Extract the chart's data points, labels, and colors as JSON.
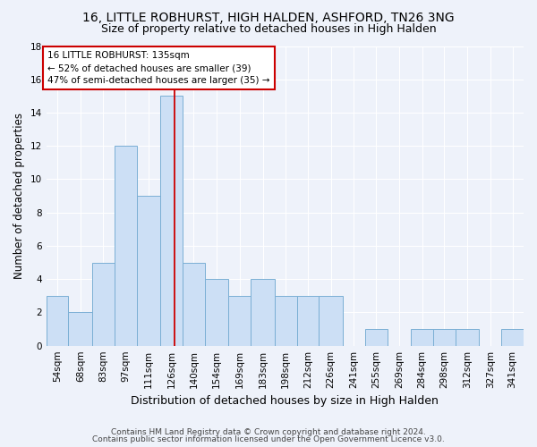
{
  "title1": "16, LITTLE ROBHURST, HIGH HALDEN, ASHFORD, TN26 3NG",
  "title2": "Size of property relative to detached houses in High Halden",
  "xlabel": "Distribution of detached houses by size in High Halden",
  "ylabel": "Number of detached properties",
  "bar_color": "#ccdff5",
  "bar_edge_color": "#7aafd4",
  "categories": [
    "54sqm",
    "68sqm",
    "83sqm",
    "97sqm",
    "111sqm",
    "126sqm",
    "140sqm",
    "154sqm",
    "169sqm",
    "183sqm",
    "198sqm",
    "212sqm",
    "226sqm",
    "241sqm",
    "255sqm",
    "269sqm",
    "284sqm",
    "298sqm",
    "312sqm",
    "327sqm",
    "341sqm"
  ],
  "values": [
    3,
    2,
    5,
    12,
    9,
    15,
    5,
    4,
    3,
    4,
    3,
    3,
    3,
    0,
    1,
    0,
    1,
    1,
    1,
    0,
    1
  ],
  "bin_edges": [
    54,
    68,
    83,
    97,
    111,
    126,
    140,
    154,
    169,
    183,
    198,
    212,
    226,
    241,
    255,
    269,
    284,
    298,
    312,
    327,
    341,
    355
  ],
  "vline_x": 135,
  "annotation_lines": [
    "16 LITTLE ROBHURST: 135sqm",
    "← 52% of detached houses are smaller (39)",
    "47% of semi-detached houses are larger (35) →"
  ],
  "ylim": [
    0,
    18
  ],
  "yticks": [
    0,
    2,
    4,
    6,
    8,
    10,
    12,
    14,
    16,
    18
  ],
  "footer1": "Contains HM Land Registry data © Crown copyright and database right 2024.",
  "footer2": "Contains public sector information licensed under the Open Government Licence v3.0.",
  "background_color": "#eef2fa",
  "grid_color": "#ffffff",
  "title_fontsize": 10,
  "subtitle_fontsize": 9,
  "ylabel_fontsize": 8.5,
  "xlabel_fontsize": 9,
  "tick_fontsize": 7.5,
  "footer_fontsize": 6.5,
  "annotation_fontsize": 7.5,
  "annotation_box_color": "#ffffff",
  "annotation_box_edge": "#cc0000",
  "vline_color": "#cc0000"
}
